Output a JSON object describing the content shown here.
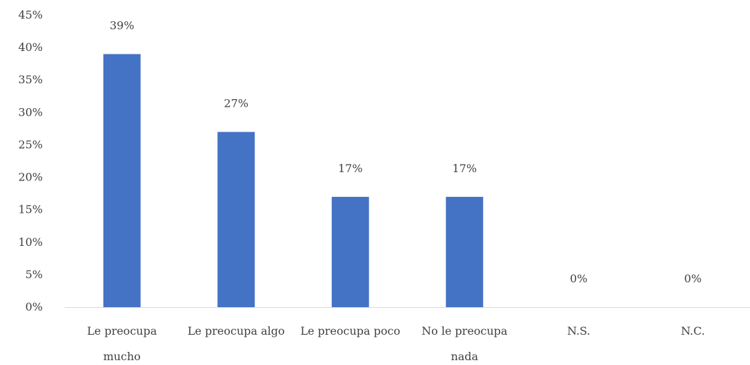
{
  "chart_data": {
    "type": "bar",
    "title": "",
    "xlabel": "",
    "ylabel": "",
    "categories": [
      [
        "Le preocupa",
        "mucho"
      ],
      [
        "Le preocupa algo"
      ],
      [
        "Le preocupa poco"
      ],
      [
        "No le preocupa",
        "nada"
      ],
      [
        "N.S."
      ],
      [
        "N.C."
      ]
    ],
    "values": [
      39,
      27,
      17,
      17,
      0,
      0
    ],
    "data_labels": [
      "39%",
      "27%",
      "17%",
      "17%",
      "0%",
      "0%"
    ],
    "ylim": [
      0,
      45
    ],
    "yticks": [
      0,
      5,
      10,
      15,
      20,
      25,
      30,
      35,
      40,
      45
    ],
    "ytick_labels": [
      "0%",
      "5%",
      "10%",
      "15%",
      "20%",
      "25%",
      "30%",
      "35%",
      "40%",
      "45%"
    ],
    "grid": false,
    "legend": "none",
    "colors": {
      "bar": "#4472C4",
      "axis": "#D9D9D9",
      "text": "#404040"
    }
  }
}
